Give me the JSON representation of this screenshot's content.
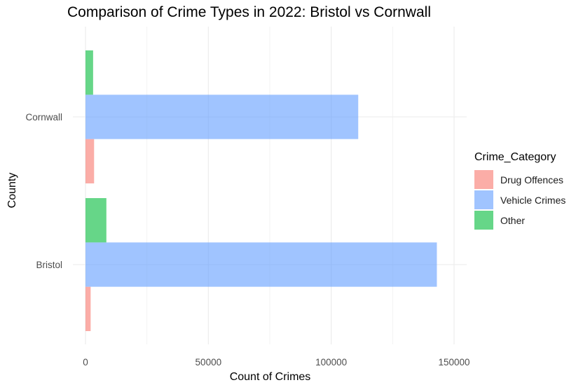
{
  "chart_data": {
    "type": "bar",
    "orientation": "horizontal",
    "title": "Comparison of Crime Types in 2022: Bristol vs Cornwall",
    "xlabel": "Count of Crimes",
    "ylabel": "County",
    "categories": [
      "Bristol",
      "Cornwall"
    ],
    "series": [
      {
        "name": "Drug Offences",
        "color": "#F8766D",
        "values": [
          2100,
          3500
        ]
      },
      {
        "name": "Vehicle Crimes",
        "color": "#619CFF",
        "values": [
          143000,
          111000
        ]
      },
      {
        "name": "Other",
        "color": "#00BA38",
        "values": [
          8500,
          3100
        ]
      }
    ],
    "xlim": [
      -3000,
      150000
    ],
    "xticks": [
      0,
      50000,
      100000,
      150000
    ],
    "xtick_labels": [
      "0",
      "50000",
      "100000",
      "150000"
    ],
    "bar_opacity": 0.6,
    "grid": true,
    "legend": {
      "title": "Crime_Category",
      "position": "right"
    }
  }
}
